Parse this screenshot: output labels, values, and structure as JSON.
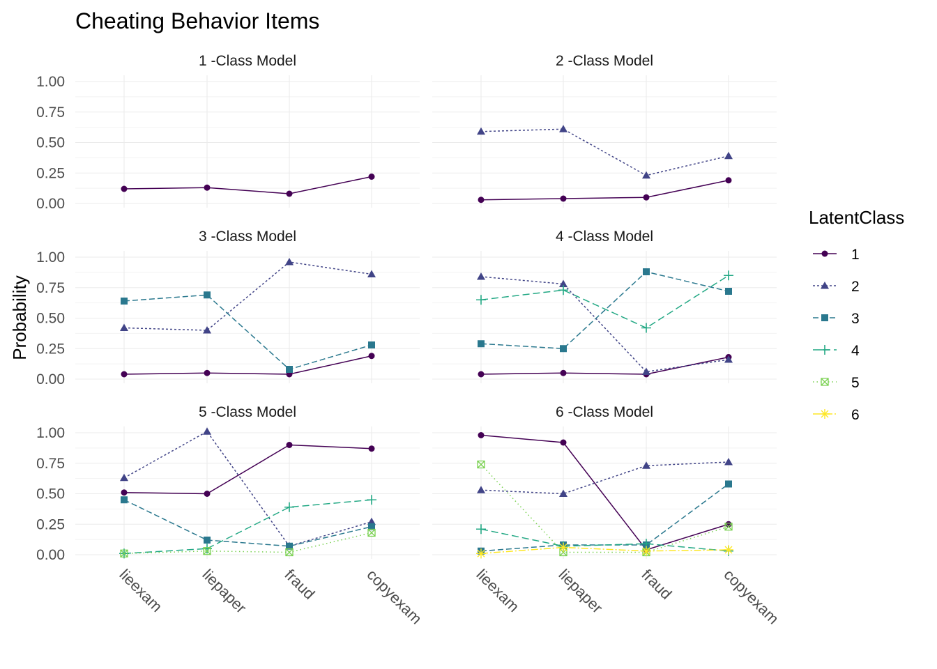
{
  "chart_data": {
    "type": "line",
    "title": "Cheating Behavior Items",
    "xlabel": "",
    "ylabel": "Probability",
    "categories": [
      "lieexam",
      "liepaper",
      "fraud",
      "copyexam"
    ],
    "ylim": [
      0,
      1
    ],
    "yticks": [
      "0.00",
      "0.25",
      "0.50",
      "0.75",
      "1.00"
    ],
    "grid": true,
    "legend": {
      "title": "LatentClass",
      "position": "right",
      "entries": [
        "1",
        "2",
        "3",
        "4",
        "5",
        "6"
      ]
    },
    "class_styles": {
      "1": {
        "color": "#440154",
        "dash": "",
        "shape": "circle"
      },
      "2": {
        "color": "#414487",
        "dash": "3,3",
        "shape": "triangle"
      },
      "3": {
        "color": "#2A788E",
        "dash": "8,4",
        "shape": "square"
      },
      "4": {
        "color": "#22A884",
        "dash": "10,5",
        "shape": "plus"
      },
      "5": {
        "color": "#7AD151",
        "dash": "1.5,4",
        "shape": "boxcross"
      },
      "6": {
        "color": "#FDE725",
        "dash": "10,3,2,3",
        "shape": "star"
      }
    },
    "panels": [
      {
        "title": "1 -Class Model",
        "series": [
          {
            "name": "1",
            "values": [
              0.12,
              0.13,
              0.08,
              0.22
            ]
          }
        ]
      },
      {
        "title": "2 -Class Model",
        "series": [
          {
            "name": "1",
            "values": [
              0.03,
              0.04,
              0.05,
              0.19
            ]
          },
          {
            "name": "2",
            "values": [
              0.59,
              0.61,
              0.23,
              0.39
            ]
          }
        ]
      },
      {
        "title": "3 -Class Model",
        "series": [
          {
            "name": "1",
            "values": [
              0.04,
              0.05,
              0.04,
              0.19
            ]
          },
          {
            "name": "2",
            "values": [
              0.42,
              0.4,
              0.96,
              0.86
            ]
          },
          {
            "name": "3",
            "values": [
              0.64,
              0.69,
              0.08,
              0.28
            ]
          }
        ]
      },
      {
        "title": "4 -Class Model",
        "series": [
          {
            "name": "1",
            "values": [
              0.04,
              0.05,
              0.04,
              0.18
            ]
          },
          {
            "name": "2",
            "values": [
              0.84,
              0.78,
              0.06,
              0.16
            ]
          },
          {
            "name": "3",
            "values": [
              0.29,
              0.25,
              0.88,
              0.72
            ]
          },
          {
            "name": "4",
            "values": [
              0.65,
              0.73,
              0.42,
              0.85
            ]
          }
        ]
      },
      {
        "title": "5 -Class Model",
        "series": [
          {
            "name": "1",
            "values": [
              0.51,
              0.5,
              0.9,
              0.87
            ]
          },
          {
            "name": "2",
            "values": [
              0.63,
              1.01,
              0.07,
              0.27
            ]
          },
          {
            "name": "3",
            "values": [
              0.45,
              0.12,
              0.07,
              0.23
            ]
          },
          {
            "name": "4",
            "values": [
              0.01,
              0.05,
              0.39,
              0.45
            ]
          },
          {
            "name": "5",
            "values": [
              0.01,
              0.03,
              0.02,
              0.18
            ]
          }
        ]
      },
      {
        "title": "6 -Class Model",
        "series": [
          {
            "name": "1",
            "values": [
              0.98,
              0.92,
              0.04,
              0.25
            ]
          },
          {
            "name": "2",
            "values": [
              0.53,
              0.5,
              0.73,
              0.76
            ]
          },
          {
            "name": "3",
            "values": [
              0.03,
              0.08,
              0.08,
              0.58
            ]
          },
          {
            "name": "4",
            "values": [
              0.21,
              0.07,
              0.09,
              0.03
            ]
          },
          {
            "name": "5",
            "values": [
              0.74,
              0.02,
              0.02,
              0.23
            ]
          },
          {
            "name": "6",
            "values": [
              0.01,
              0.06,
              0.03,
              0.04
            ]
          }
        ]
      }
    ]
  }
}
